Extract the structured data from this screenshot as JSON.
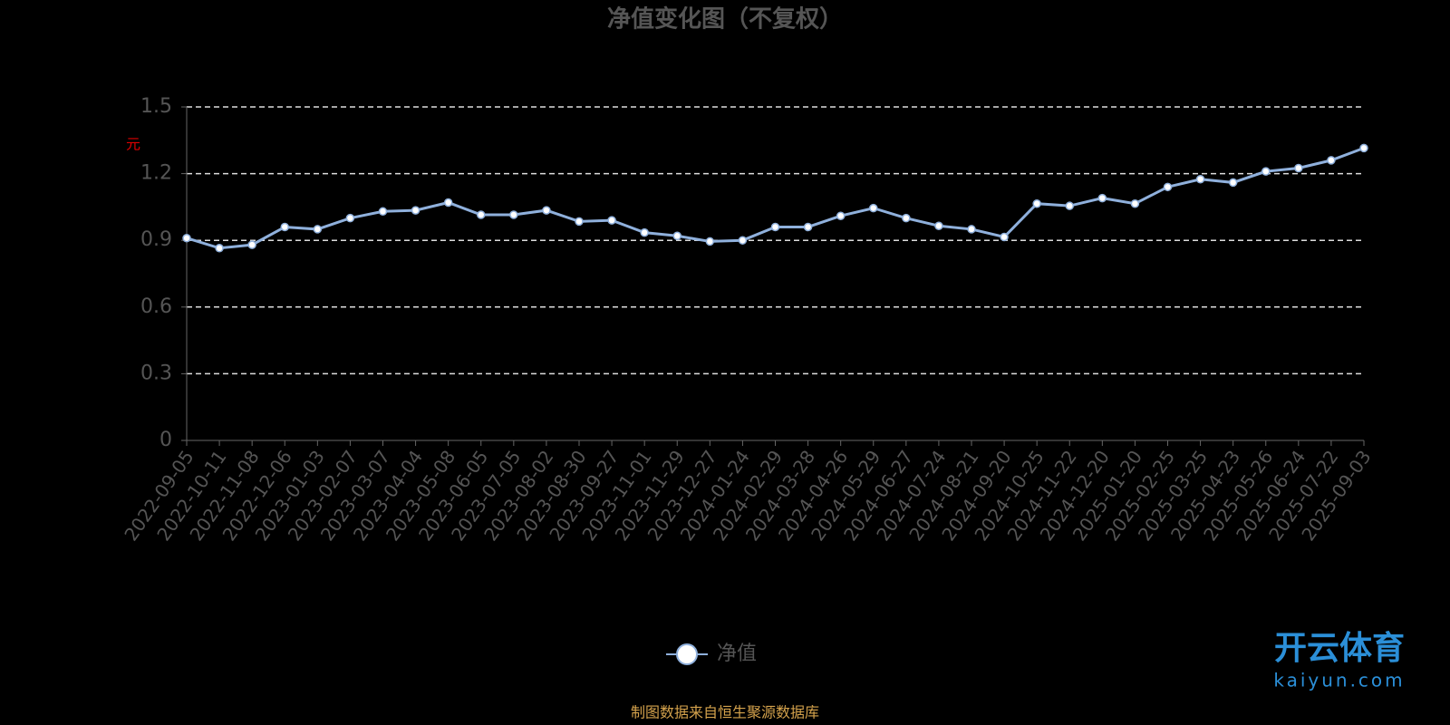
{
  "chart_data": {
    "type": "line",
    "title": "净值变化图（不复权）",
    "y_label": "元",
    "categories": [
      "2022-09-05",
      "2022-10-11",
      "2022-11-08",
      "2022-12-06",
      "2023-01-03",
      "2023-02-07",
      "2023-03-07",
      "2023-04-04",
      "2023-05-08",
      "2023-06-05",
      "2023-07-05",
      "2023-08-02",
      "2023-08-30",
      "2023-09-27",
      "2023-11-01",
      "2023-11-29",
      "2023-12-27",
      "2024-01-24",
      "2024-02-29",
      "2024-03-28",
      "2024-04-26",
      "2024-05-29",
      "2024-06-27",
      "2024-07-24",
      "2024-08-21",
      "2024-09-20",
      "2024-10-25",
      "2024-11-22",
      "2024-12-20",
      "2025-01-20",
      "2025-02-25",
      "2025-03-25",
      "2025-04-23",
      "2025-05-26",
      "2025-06-24",
      "2025-07-22",
      "2025-09-03"
    ],
    "series": [
      {
        "name": "净值",
        "color": "#8fb0dc",
        "values": [
          0.91,
          0.865,
          0.88,
          0.96,
          0.95,
          1.0,
          1.03,
          1.035,
          1.07,
          1.015,
          1.015,
          1.035,
          0.985,
          0.99,
          0.935,
          0.92,
          0.895,
          0.9,
          0.96,
          0.96,
          1.01,
          1.045,
          1.0,
          0.965,
          0.95,
          0.915,
          1.065,
          1.055,
          1.09,
          1.065,
          1.14,
          1.175,
          1.16,
          1.21,
          1.225,
          1.26,
          1.315
        ]
      }
    ],
    "ylim": [
      0,
      1.5
    ],
    "yticks": [
      0,
      0.3,
      0.6,
      0.9,
      1.2,
      1.5
    ],
    "grid": true,
    "source": "制图数据来自恒生聚源数据库"
  },
  "watermark": {
    "brand": "开云体育",
    "site": "kaiyun.com"
  }
}
